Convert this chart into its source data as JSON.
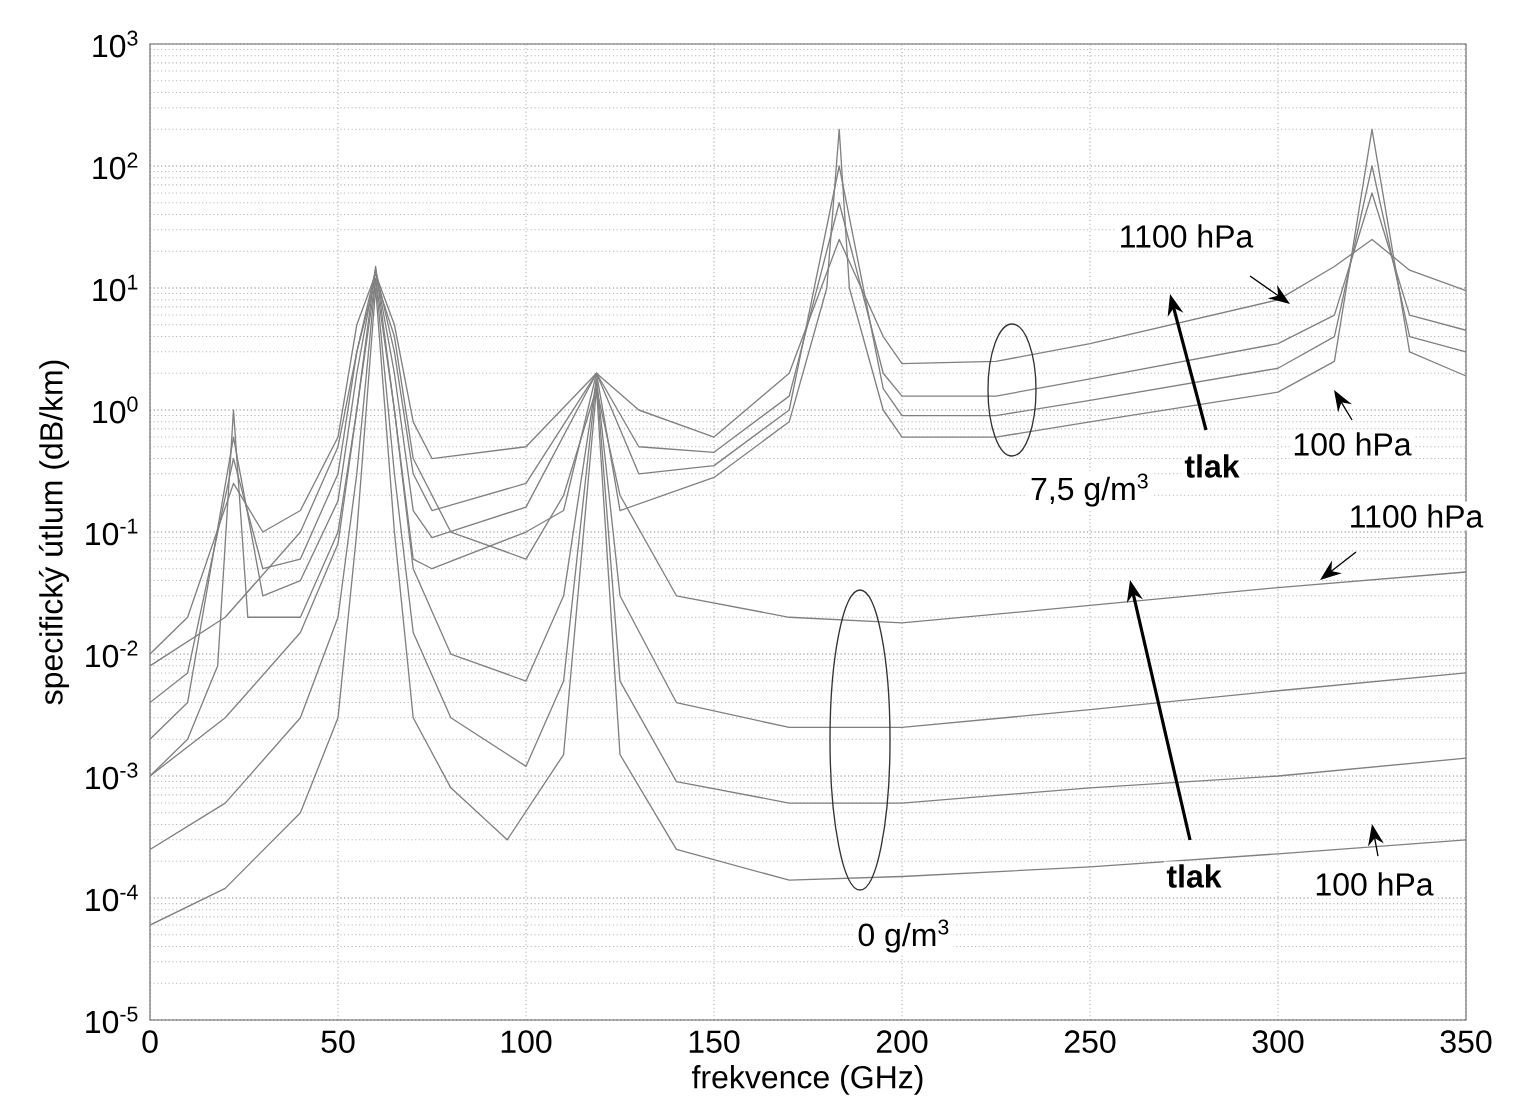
{
  "chart_data": {
    "type": "line",
    "xlabel": "frekvence (GHz)",
    "ylabel": "specifický útlum (dB/km)",
    "log": "y",
    "grid": true,
    "xlim": [
      0,
      350
    ],
    "xticks": [
      0,
      50,
      100,
      150,
      200,
      250,
      300,
      350
    ],
    "ylim": [
      1e-05,
      1000
    ],
    "yticks": [
      {
        "value": 1e-05,
        "label": "10$^{-5}$"
      },
      {
        "value": 0.0001,
        "label": "10$^{-4}$"
      },
      {
        "value": 0.001,
        "label": "10$^{-3}$"
      },
      {
        "value": 0.01,
        "label": "10$^{-2}$"
      },
      {
        "value": 0.1,
        "label": "10$^{-1}$"
      },
      {
        "value": 1,
        "label": "10$^{0}$"
      },
      {
        "value": 10,
        "label": "10$^{1}$"
      },
      {
        "value": 100,
        "label": "10$^{2}$"
      },
      {
        "value": 1000,
        "label": "10$^{3}$"
      }
    ],
    "series": [
      {
        "color": "#808080",
        "x": [
          0,
          10,
          22.2,
          30,
          40,
          50,
          55,
          60,
          65,
          70,
          75,
          100,
          118.75,
          130,
          150,
          170,
          183.3,
          195,
          200,
          225,
          250,
          300,
          315,
          325,
          335,
          350
        ],
        "values": [
          0.01,
          0.02,
          0.25,
          0.1,
          0.15,
          0.6,
          5,
          13,
          5,
          0.8,
          0.4,
          0.5,
          2,
          1,
          0.6,
          2,
          25,
          4,
          2.4,
          2.5,
          3.5,
          8,
          15,
          25,
          14,
          9.5
        ]
      },
      {
        "color": "#808080",
        "x": [
          0,
          10,
          22.2,
          30,
          40,
          50,
          55,
          60,
          65,
          70,
          75,
          100,
          118.75,
          130,
          150,
          170,
          183.3,
          195,
          200,
          225,
          250,
          300,
          315,
          325,
          335,
          350
        ],
        "values": [
          0.004,
          0.007,
          0.4,
          0.05,
          0.06,
          0.3,
          3,
          14,
          3,
          0.3,
          0.15,
          0.25,
          2,
          0.5,
          0.45,
          1.3,
          50,
          2,
          1.3,
          1.3,
          1.8,
          3.5,
          6,
          60,
          6,
          4.5
        ]
      },
      {
        "color": "#808080",
        "x": [
          0,
          10,
          22.2,
          30,
          40,
          50,
          55,
          60,
          65,
          70,
          75,
          100,
          118.75,
          130,
          150,
          170,
          183.3,
          195,
          200,
          225,
          250,
          300,
          315,
          325,
          335,
          350
        ],
        "values": [
          0.002,
          0.004,
          0.6,
          0.03,
          0.04,
          0.18,
          2,
          14,
          2,
          0.15,
          0.09,
          0.16,
          2,
          0.3,
          0.35,
          1,
          100,
          1.5,
          0.9,
          0.9,
          1.2,
          2.2,
          4,
          100,
          4,
          3
        ]
      },
      {
        "color": "#808080",
        "x": [
          0,
          10,
          18,
          22.2,
          26,
          40,
          50,
          55,
          60,
          65,
          70,
          75,
          100,
          110,
          118.75,
          125,
          150,
          170,
          180,
          183.3,
          186,
          195,
          200,
          225,
          250,
          300,
          315,
          325,
          335,
          350
        ],
        "values": [
          0.001,
          0.002,
          0.008,
          1,
          0.02,
          0.02,
          0.1,
          1,
          15,
          1,
          0.06,
          0.05,
          0.1,
          0.15,
          2,
          0.15,
          0.28,
          0.8,
          10,
          200,
          10,
          1,
          0.6,
          0.6,
          0.8,
          1.4,
          2.5,
          200,
          3,
          1.9
        ]
      },
      {
        "color": "#808080",
        "x": [
          0,
          20,
          40,
          50,
          55,
          60,
          65,
          70,
          80,
          100,
          110,
          118.75,
          125,
          140,
          170,
          200,
          250,
          300,
          350
        ],
        "values": [
          0.008,
          0.02,
          0.1,
          0.5,
          3,
          12,
          4,
          0.4,
          0.1,
          0.06,
          0.2,
          1.5,
          0.2,
          0.03,
          0.02,
          0.018,
          0.025,
          0.035,
          0.047
        ]
      },
      {
        "color": "#808080",
        "x": [
          0,
          20,
          40,
          50,
          55,
          60,
          65,
          70,
          80,
          100,
          110,
          118.75,
          125,
          140,
          170,
          200,
          250,
          300,
          350
        ],
        "values": [
          0.001,
          0.003,
          0.015,
          0.08,
          1,
          12,
          1,
          0.05,
          0.01,
          0.006,
          0.03,
          1.8,
          0.03,
          0.004,
          0.0025,
          0.0025,
          0.0035,
          0.005,
          0.007
        ]
      },
      {
        "color": "#808080",
        "x": [
          0,
          20,
          40,
          50,
          55,
          60,
          65,
          70,
          80,
          100,
          110,
          118.75,
          125,
          140,
          170,
          200,
          250,
          300,
          350
        ],
        "values": [
          0.00025,
          0.0006,
          0.003,
          0.02,
          0.3,
          12,
          0.3,
          0.015,
          0.003,
          0.0012,
          0.006,
          1.8,
          0.006,
          0.0009,
          0.0006,
          0.0006,
          0.0008,
          0.001,
          0.0014
        ]
      },
      {
        "color": "#808080",
        "x": [
          0,
          20,
          40,
          50,
          55,
          60,
          65,
          70,
          80,
          95,
          110,
          118.75,
          125,
          140,
          170,
          200,
          250,
          300,
          350
        ],
        "values": [
          6e-05,
          0.00012,
          0.0005,
          0.003,
          0.1,
          10,
          0.1,
          0.003,
          0.0008,
          0.0003,
          0.0015,
          1.5,
          0.0015,
          0.00025,
          0.00014,
          0.00015,
          0.00018,
          0.00023,
          0.0003
        ]
      }
    ],
    "annotations": [
      "1100 hPa",
      "100 hPa",
      "7,5 g/m$^{3}$",
      "1100 hPa",
      "100 hPa",
      "0 g/m$^{3}$",
      "tlak",
      "tlak"
    ]
  }
}
